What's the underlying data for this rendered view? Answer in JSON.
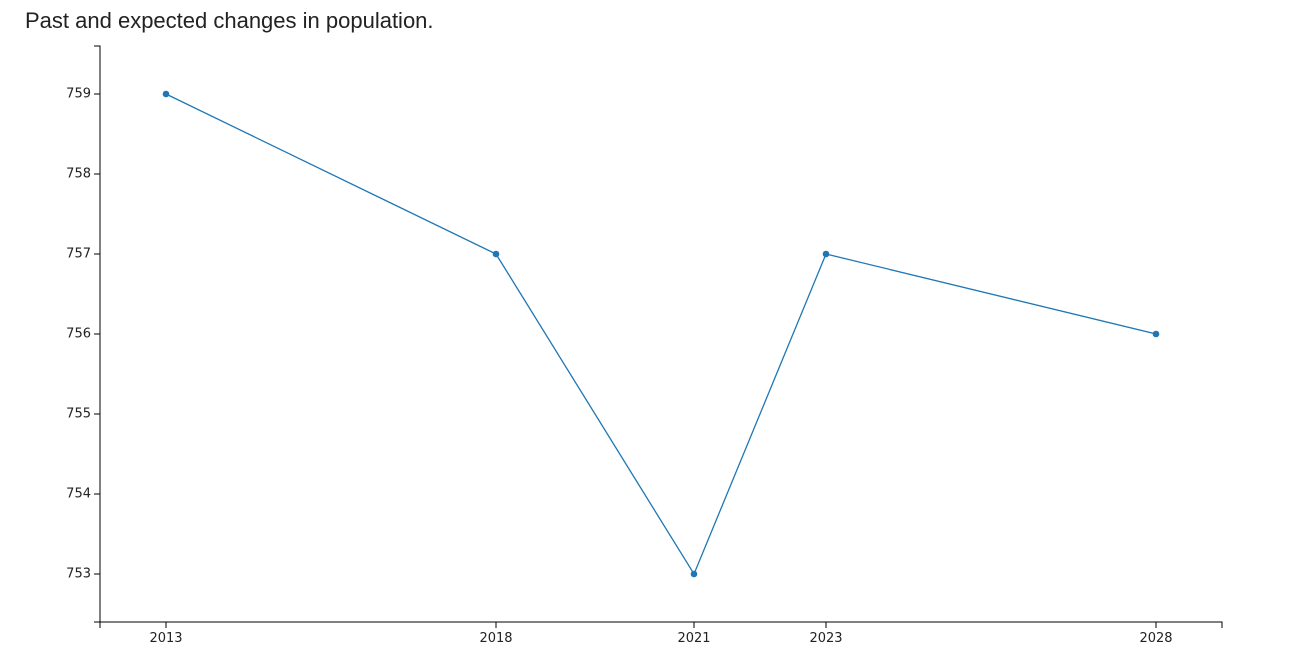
{
  "chart_data": {
    "type": "line",
    "title": "Past and expected changes in population.",
    "xlabel": "",
    "ylabel": "",
    "x": [
      2013,
      2018,
      2021,
      2023,
      2028
    ],
    "series": [
      {
        "values": [
          759,
          757,
          753,
          757,
          756
        ]
      }
    ],
    "xlim": [
      2012,
      2029
    ],
    "ylim": [
      752.4,
      759.6
    ],
    "yticks": [
      753,
      754,
      755,
      756,
      757,
      758,
      759
    ],
    "xticks": [
      2013,
      2018,
      2021,
      2023,
      2028
    ],
    "grid": false,
    "line_color": "#1f77b4",
    "axis_color": "#000000"
  }
}
